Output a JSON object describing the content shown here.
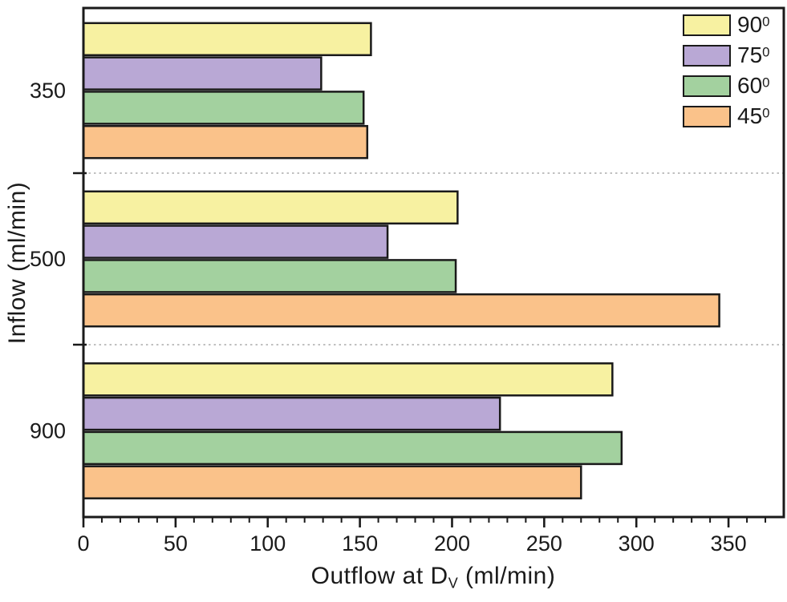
{
  "chart_data": {
    "type": "bar",
    "orientation": "horizontal",
    "title": "",
    "xlabel": "Outflow at DV (ml/min)",
    "xlabel_parts": {
      "main": "Outflow at D",
      "sub": "V",
      "rest": " (ml/min)"
    },
    "ylabel": "Inflow (ml/min)",
    "categories": [
      "350",
      "500",
      "900"
    ],
    "series": [
      {
        "name": "90",
        "name_sup": "0",
        "color": "#f7f1a1",
        "values": [
          156,
          203,
          287
        ]
      },
      {
        "name": "75",
        "name_sup": "0",
        "color": "#b9a8d5",
        "values": [
          129,
          165,
          226
        ]
      },
      {
        "name": "60",
        "name_sup": "0",
        "color": "#a3d19f",
        "values": [
          152,
          202,
          292
        ]
      },
      {
        "name": "45",
        "name_sup": "0",
        "color": "#fac28a",
        "values": [
          154,
          345,
          270
        ]
      }
    ],
    "xlim": [
      0,
      380
    ],
    "x_major_ticks": [
      "0",
      "50",
      "100",
      "150",
      "200",
      "250",
      "300",
      "350"
    ],
    "x_minor_tick_step": 10,
    "grid": "dashed gray horizontal separator lines between category groups",
    "legend_position": "top-right-inside",
    "colors": {
      "bar_border": "#1a1a1a",
      "axis": "#1a1a1a",
      "text": "#1a1a1a",
      "separator": "#ababab",
      "background": "#ffffff"
    }
  }
}
